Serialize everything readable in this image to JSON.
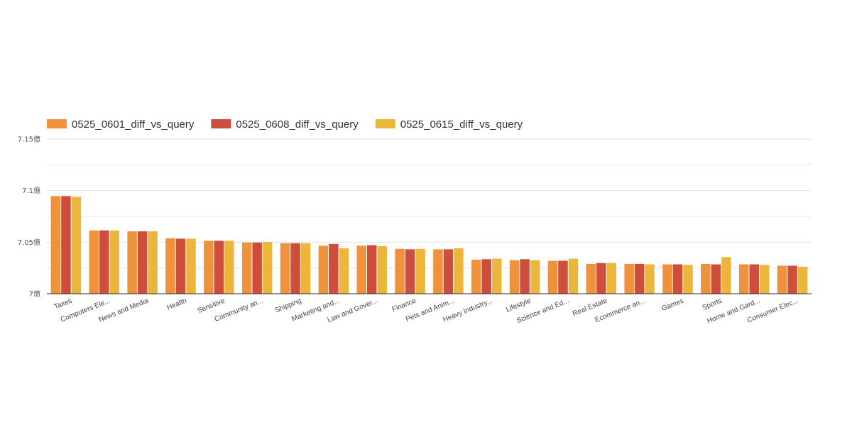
{
  "chart_data": {
    "type": "bar",
    "categories": [
      "Taxes",
      "Computers Ele...",
      "News and Media",
      "Health",
      "Sensitive",
      "Community an...",
      "Shipping",
      "Marketing and...",
      "Law and Gover...",
      "Finance",
      "Pets and Anim...",
      "Heavy Industry...",
      "Lifestyle",
      "Science and Ed...",
      "Real Estate",
      "Ecommerce an...",
      "Games",
      "Sports",
      "Home and Gard...",
      "Consumer Elec..."
    ],
    "series": [
      {
        "name": "0525_0601_diff_vs_query",
        "color": "#f0923b",
        "values": [
          7.0947,
          7.0614,
          7.0605,
          7.0538,
          7.0513,
          7.0497,
          7.049,
          7.0466,
          7.0466,
          7.0435,
          7.0431,
          7.033,
          7.0325,
          7.032,
          7.029,
          7.029,
          7.0285,
          7.029,
          7.0285,
          7.0272
        ]
      },
      {
        "name": "0525_0608_diff_vs_query",
        "color": "#cd4e3b",
        "values": [
          7.0947,
          7.0614,
          7.0605,
          7.0534,
          7.0513,
          7.0497,
          7.049,
          7.0483,
          7.0471,
          7.0431,
          7.0431,
          7.0335,
          7.0335,
          7.032,
          7.0298,
          7.029,
          7.0285,
          7.0285,
          7.0285,
          7.0272
        ]
      },
      {
        "name": "0525_0615_diff_vs_query",
        "color": "#ecb63c",
        "values": [
          7.094,
          7.0614,
          7.0605,
          7.0534,
          7.0513,
          7.0502,
          7.049,
          7.0441,
          7.0461,
          7.0435,
          7.0441,
          7.034,
          7.0325,
          7.034,
          7.0298,
          7.0285,
          7.028,
          7.0355,
          7.028,
          7.0262
        ]
      }
    ],
    "yticks": [
      {
        "value": 7.15,
        "label": "7.15億"
      },
      {
        "value": 7.1,
        "label": "7.1億"
      },
      {
        "value": 7.05,
        "label": "7.05億"
      },
      {
        "value": 7.0,
        "label": "7億"
      }
    ],
    "ylim": [
      7.0,
      7.15
    ],
    "grid": true,
    "legend_position": "top-left",
    "title": "",
    "xlabel": "",
    "ylabel": ""
  }
}
